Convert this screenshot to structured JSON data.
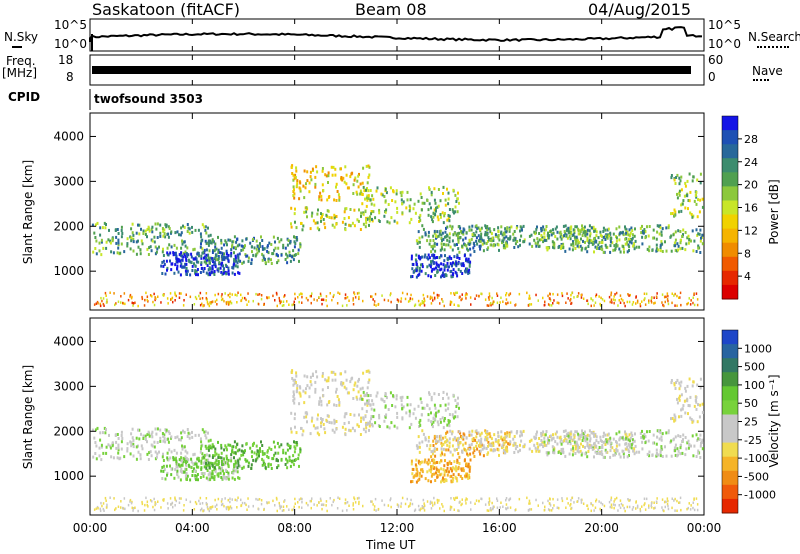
{
  "header": {
    "station": "Saskatoon (fitACF)",
    "beam": "Beam 08",
    "date": "04/Aug/2015"
  },
  "top_panels": {
    "nsky_label": "N.Sky",
    "nsky_ticks": [
      "10^5",
      "10^0"
    ],
    "nsearch_label": "N.Search",
    "nsearch_ticks": [
      "10^5",
      "10^0"
    ],
    "freq_label_1": "Freq.",
    "freq_label_2": "[MHz]",
    "freq_ticks": [
      "18",
      "8"
    ],
    "nave_label": "Nave",
    "nave_ticks": [
      "60",
      "0"
    ],
    "cpid_label": "CPID",
    "cpid_value": "twofsound 3503"
  },
  "chart_data": [
    {
      "type": "heatmap",
      "panel": "power",
      "ylabel": "Slant Range [km]",
      "yticks": [
        "4000",
        "3000",
        "2000",
        "1000"
      ],
      "ylim": [
        180,
        4500
      ],
      "colorbar_label": "Power [dB]",
      "colorbar_ticks": [
        "28",
        "24",
        "20",
        "16",
        "12",
        "8",
        "4"
      ],
      "colorbar_colors": [
        "#1414e6",
        "#1e50b4",
        "#28689a",
        "#3c8c6e",
        "#50a050",
        "#8cc83c",
        "#c8e628",
        "#f0d200",
        "#f5b400",
        "#f08c00",
        "#f05a00",
        "#e62800",
        "#dc0000"
      ]
    },
    {
      "type": "heatmap",
      "panel": "velocity",
      "ylabel": "Slant Range [km]",
      "yticks": [
        "4000",
        "3000",
        "2000",
        "1000"
      ],
      "ylim": [
        180,
        4500
      ],
      "colorbar_label": "Velocity [m s⁻¹]",
      "colorbar_ticks": [
        "1000",
        "500",
        "100",
        "50",
        "25",
        "-25",
        "-100",
        "-500",
        "-1000"
      ],
      "colorbar_colors": [
        "#1e46c8",
        "#2864a0",
        "#327864",
        "#46963c",
        "#64c832",
        "#78d23c",
        "#c8c8c8",
        "#c8c8c8",
        "#f0dc50",
        "#f5b428",
        "#f08c14",
        "#f05a0a",
        "#e62800"
      ]
    }
  ],
  "xaxis": {
    "label": "Time UT",
    "ticks": [
      "00:00",
      "04:00",
      "08:00",
      "12:00",
      "16:00",
      "20:00",
      "00:00"
    ]
  }
}
